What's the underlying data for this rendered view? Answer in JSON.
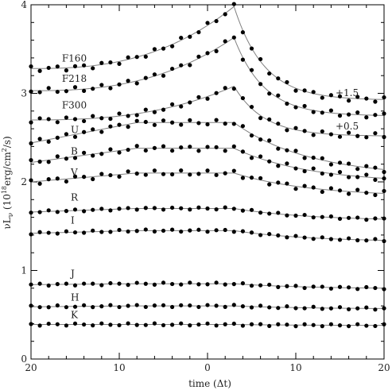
{
  "chart_data": {
    "type": "scatter",
    "xlabel": "time (Δt)",
    "ylabel": "νL_ν (10^18 erg/cm^2/s)",
    "ylabel_parts": {
      "prefix": "νL",
      "sub": "ν",
      "paren_open": " (10",
      "sup": "18",
      "mid": "erg/cm",
      "sup2": "2",
      "suffix": "/s)"
    },
    "xlim": [
      -20,
      20
    ],
    "ylim": [
      0,
      4
    ],
    "x_ticks": [
      -20,
      -10,
      0,
      10,
      20
    ],
    "x_tick_labels": [
      "20",
      "10",
      "0",
      "10",
      "20"
    ],
    "y_ticks": [
      0,
      1,
      2,
      3,
      4
    ],
    "y_tick_labels": [
      "0",
      "1",
      "2",
      "3",
      "4"
    ],
    "grid": false,
    "legend": "none",
    "series_style": {
      "marker": "circle",
      "marker_color": "#000000",
      "line_color": "#808080"
    },
    "annotations": [
      {
        "text": "+1.5",
        "x": 14.5,
        "y": 2.97
      },
      {
        "text": "+0.5",
        "x": 14.5,
        "y": 2.59
      }
    ],
    "series": [
      {
        "name": "F160",
        "label_x": -16.5,
        "label_y": 3.36,
        "base": 3.28,
        "peak": 3.98,
        "plateau": 0,
        "end": 2.93
      },
      {
        "name": "F218",
        "label_x": -16.5,
        "label_y": 3.13,
        "base": 3.03,
        "peak": 3.63,
        "plateau": 0,
        "end": 2.75
      },
      {
        "name": "F300",
        "label_x": -16.5,
        "label_y": 2.83,
        "base": 2.7,
        "peak": 3.08,
        "plateau": 0,
        "end": 2.52
      },
      {
        "name": "U",
        "label_x": -15.5,
        "label_y": 2.55,
        "base": 2.44,
        "peak": 2.67,
        "plateau": 1,
        "end": 2.14
      },
      {
        "name": "B",
        "label_x": -15.5,
        "label_y": 2.31,
        "base": 2.22,
        "peak": 2.38,
        "plateau": 1,
        "end": 2.04
      },
      {
        "name": "V",
        "label_x": -15.5,
        "label_y": 2.07,
        "base": 2.0,
        "peak": 2.1,
        "plateau": 1,
        "end": 1.87
      },
      {
        "name": "R",
        "label_x": -15.5,
        "label_y": 1.79,
        "base": 1.66,
        "peak": 1.7,
        "plateau": 1,
        "end": 1.58
      },
      {
        "name": "I",
        "label_x": -15.5,
        "label_y": 1.53,
        "base": 1.42,
        "peak": 1.45,
        "plateau": 1,
        "end": 1.34
      },
      {
        "name": "J",
        "label_x": -15.5,
        "label_y": 0.93,
        "base": 0.84,
        "peak": 0.85,
        "plateau": 1,
        "end": 0.8
      },
      {
        "name": "H",
        "label_x": -15.5,
        "label_y": 0.66,
        "base": 0.59,
        "peak": 0.6,
        "plateau": 1,
        "end": 0.57
      },
      {
        "name": "K",
        "label_x": -15.5,
        "label_y": 0.46,
        "base": 0.39,
        "peak": 0.39,
        "plateau": 1,
        "end": 0.38
      }
    ]
  }
}
